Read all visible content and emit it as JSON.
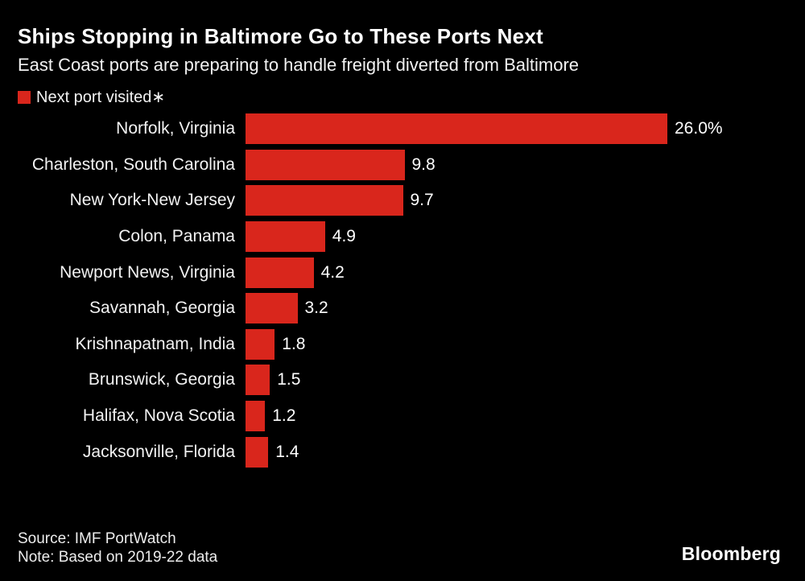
{
  "header": {
    "title": "Ships Stopping in Baltimore Go to These Ports Next",
    "subtitle": "East Coast ports are preparing to handle freight diverted from Baltimore"
  },
  "legend": {
    "label": "Next port visited∗",
    "swatch_color": "#d9261c"
  },
  "chart_data": {
    "type": "bar",
    "orientation": "horizontal",
    "title": "Ships Stopping in Baltimore Go to These Ports Next",
    "subtitle": "East Coast ports are preparing to handle freight diverted from Baltimore",
    "series_label": "Next port visited*",
    "categories": [
      "Norfolk, Virginia",
      "Charleston, South Carolina",
      "New York-New Jersey",
      "Colon, Panama",
      "Newport News, Virginia",
      "Savannah, Georgia",
      "Krishnapatnam, India",
      "Brunswick, Georgia",
      "Halifax, Nova Scotia",
      "Jacksonville, Florida"
    ],
    "values": [
      26.0,
      9.8,
      9.7,
      4.9,
      4.2,
      3.2,
      1.8,
      1.5,
      1.2,
      1.4
    ],
    "value_labels": [
      "26.0%",
      "9.8",
      "9.7",
      "4.9",
      "4.2",
      "3.2",
      "1.8",
      "1.5",
      "1.2",
      "1.4"
    ],
    "unit": "percent",
    "xlim": [
      0,
      26
    ],
    "grid": false,
    "legend_position": "top-left",
    "bar_color": "#d9261c",
    "background_color": "#000000",
    "text_color": "#f2f2f2"
  },
  "footer": {
    "source": "Source: IMF PortWatch",
    "note": "Note: Based on 2019-22 data",
    "brand": "Bloomberg"
  }
}
